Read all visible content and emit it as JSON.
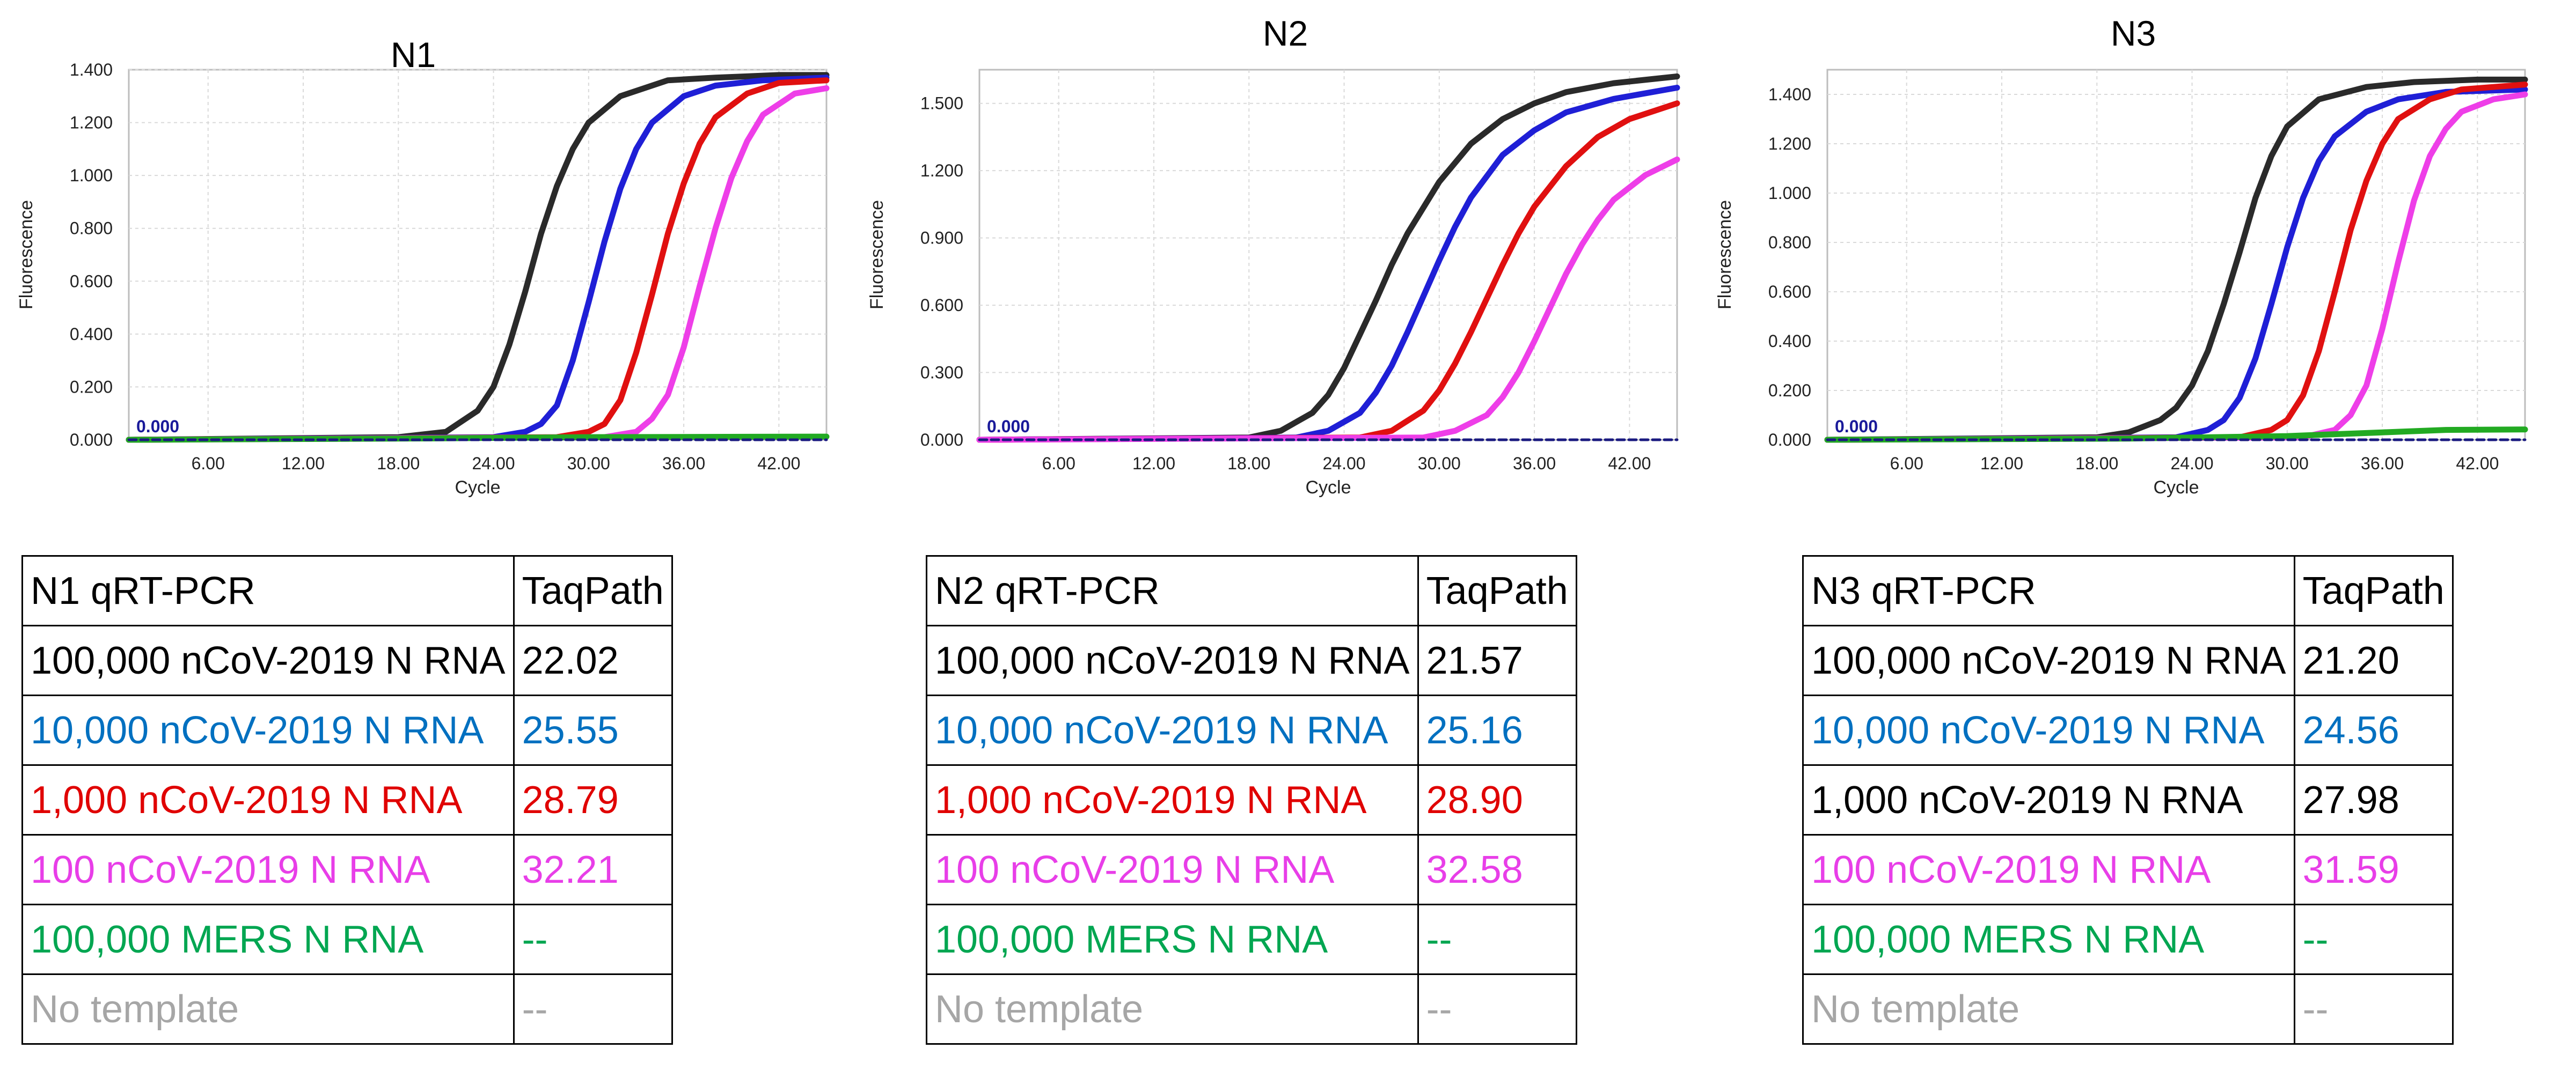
{
  "panels": [
    {
      "title": "N1",
      "xlabel": "Cycle",
      "ylabel": "Fluorescence",
      "baseline_label": "0.000",
      "table": {
        "header": [
          "N1 qRT-PCR",
          "TaqPath"
        ],
        "rows": [
          {
            "label": "100,000 nCoV-2019 N RNA",
            "value": "22.02",
            "color": "#000000"
          },
          {
            "label": "10,000 nCoV-2019 N RNA",
            "value": "25.55",
            "color": "#0070c0"
          },
          {
            "label": "1,000 nCoV-2019 N RNA",
            "value": "28.79",
            "color": "#e00000"
          },
          {
            "label": "100 nCoV-2019 N RNA",
            "value": "32.21",
            "color": "#e83ee8"
          },
          {
            "label": "100,000 MERS N RNA",
            "value": "--",
            "color": "#00a651"
          },
          {
            "label": "No template",
            "value": "--",
            "color": "#a6a6a6"
          }
        ]
      }
    },
    {
      "title": "N2",
      "xlabel": "Cycle",
      "ylabel": "Fluorescence",
      "baseline_label": "0.000",
      "table": {
        "header": [
          "N2 qRT-PCR",
          "TaqPath"
        ],
        "rows": [
          {
            "label": "100,000 nCoV-2019 N RNA",
            "value": "21.57",
            "color": "#000000"
          },
          {
            "label": "10,000 nCoV-2019 N RNA",
            "value": "25.16",
            "color": "#0070c0"
          },
          {
            "label": "1,000 nCoV-2019 N RNA",
            "value": "28.90",
            "color": "#e00000"
          },
          {
            "label": "100 nCoV-2019 N RNA",
            "value": "32.58",
            "color": "#e83ee8"
          },
          {
            "label": "100,000 MERS N RNA",
            "value": "--",
            "color": "#00a651"
          },
          {
            "label": "No template",
            "value": "--",
            "color": "#a6a6a6"
          }
        ]
      }
    },
    {
      "title": "N3",
      "xlabel": "Cycle",
      "ylabel": "Fluorescence",
      "baseline_label": "0.000",
      "table": {
        "header": [
          "N3 qRT-PCR",
          "TaqPath"
        ],
        "rows": [
          {
            "label": "100,000 nCoV-2019 N RNA",
            "value": "21.20",
            "color": "#000000"
          },
          {
            "label": "10,000 nCoV-2019 N RNA",
            "value": "24.56",
            "color": "#0070c0"
          },
          {
            "label": "1,000 nCoV-2019 N RNA",
            "value": "27.98",
            "color": "#000000"
          },
          {
            "label": "100 nCoV-2019 N RNA",
            "value": "31.59",
            "color": "#e83ee8"
          },
          {
            "label": "100,000 MERS N RNA",
            "value": "--",
            "color": "#00a651"
          },
          {
            "label": "No template",
            "value": "--",
            "color": "#a6a6a6"
          }
        ]
      }
    }
  ],
  "chart_data": [
    {
      "type": "line",
      "title": "N1",
      "xlabel": "Cycle",
      "ylabel": "Fluorescence",
      "xlim": [
        1,
        45
      ],
      "ylim": [
        0,
        1.4
      ],
      "xticks": [
        "6.00",
        "12.00",
        "18.00",
        "24.00",
        "30.00",
        "36.00",
        "42.00"
      ],
      "xtick_values": [
        6,
        12,
        18,
        24,
        30,
        36,
        42
      ],
      "yticks": [
        "0.000",
        "0.200",
        "0.400",
        "0.600",
        "0.800",
        "1.000",
        "1.200",
        "1.400"
      ],
      "ytick_values": [
        0,
        0.2,
        0.4,
        0.6,
        0.8,
        1.0,
        1.2,
        1.4
      ],
      "grid": true,
      "series": [
        {
          "color": "#2a2a2a",
          "x": [
            1,
            18,
            21,
            23,
            24,
            25,
            26,
            27,
            28,
            29,
            30,
            32,
            35,
            38,
            42,
            45
          ],
          "y": [
            0,
            0.01,
            0.03,
            0.11,
            0.2,
            0.36,
            0.56,
            0.78,
            0.96,
            1.1,
            1.2,
            1.3,
            1.36,
            1.37,
            1.38,
            1.38
          ]
        },
        {
          "color": "#1f1fd6",
          "x": [
            1,
            24,
            26,
            27,
            28,
            29,
            30,
            31,
            32,
            33,
            34,
            36,
            38,
            41,
            45
          ],
          "y": [
            0,
            0.01,
            0.03,
            0.06,
            0.13,
            0.3,
            0.52,
            0.75,
            0.95,
            1.1,
            1.2,
            1.3,
            1.34,
            1.36,
            1.37
          ]
        },
        {
          "color": "#e01010",
          "x": [
            1,
            28,
            30,
            31,
            32,
            33,
            34,
            35,
            36,
            37,
            38,
            40,
            42,
            45
          ],
          "y": [
            0,
            0.01,
            0.03,
            0.06,
            0.15,
            0.33,
            0.55,
            0.78,
            0.97,
            1.12,
            1.22,
            1.31,
            1.35,
            1.36
          ]
        },
        {
          "color": "#ee3ee8",
          "x": [
            1,
            31,
            33,
            34,
            35,
            36,
            37,
            38,
            39,
            40,
            41,
            43,
            45
          ],
          "y": [
            0,
            0.01,
            0.03,
            0.08,
            0.17,
            0.35,
            0.58,
            0.8,
            0.99,
            1.13,
            1.23,
            1.31,
            1.33
          ]
        },
        {
          "color": "#22aa22",
          "x": [
            1,
            20,
            30,
            45
          ],
          "y": [
            0,
            0.005,
            0.01,
            0.012
          ]
        },
        {
          "color": "#1a1a80",
          "x": [
            1,
            45
          ],
          "y": [
            0,
            0
          ],
          "dashed": true
        }
      ]
    },
    {
      "type": "line",
      "title": "N2",
      "xlabel": "Cycle",
      "ylabel": "Fluorescence",
      "xlim": [
        1,
        45
      ],
      "ylim": [
        0,
        1.65
      ],
      "xticks": [
        "6.00",
        "12.00",
        "18.00",
        "24.00",
        "30.00",
        "36.00",
        "42.00"
      ],
      "xtick_values": [
        6,
        12,
        18,
        24,
        30,
        36,
        42
      ],
      "yticks": [
        "0.000",
        "0.300",
        "0.600",
        "0.900",
        "1.200",
        "1.500"
      ],
      "ytick_values": [
        0,
        0.3,
        0.6,
        0.9,
        1.2,
        1.5
      ],
      "grid": true,
      "series": [
        {
          "color": "#2a2a2a",
          "x": [
            1,
            18,
            20,
            22,
            23,
            24,
            25,
            26,
            27,
            28,
            30,
            32,
            34,
            36,
            38,
            41,
            45
          ],
          "y": [
            0,
            0.01,
            0.04,
            0.12,
            0.2,
            0.32,
            0.47,
            0.62,
            0.78,
            0.92,
            1.15,
            1.32,
            1.43,
            1.5,
            1.55,
            1.59,
            1.62
          ]
        },
        {
          "color": "#1f1fd6",
          "x": [
            1,
            21,
            23,
            25,
            26,
            27,
            28,
            29,
            30,
            31,
            32,
            34,
            36,
            38,
            41,
            45
          ],
          "y": [
            0,
            0.01,
            0.04,
            0.12,
            0.21,
            0.33,
            0.48,
            0.64,
            0.8,
            0.95,
            1.08,
            1.27,
            1.38,
            1.46,
            1.52,
            1.57
          ]
        },
        {
          "color": "#e01010",
          "x": [
            1,
            25,
            27,
            29,
            30,
            31,
            32,
            33,
            34,
            35,
            36,
            38,
            40,
            42,
            45
          ],
          "y": [
            0,
            0.01,
            0.04,
            0.13,
            0.22,
            0.34,
            0.48,
            0.63,
            0.78,
            0.92,
            1.04,
            1.22,
            1.35,
            1.43,
            1.5
          ]
        },
        {
          "color": "#ee3ee8",
          "x": [
            1,
            29,
            31,
            33,
            34,
            35,
            36,
            37,
            38,
            39,
            40,
            41,
            43,
            45
          ],
          "y": [
            0,
            0.01,
            0.04,
            0.11,
            0.19,
            0.3,
            0.44,
            0.59,
            0.74,
            0.87,
            0.98,
            1.07,
            1.18,
            1.25
          ]
        },
        {
          "color": "#1a1a80",
          "x": [
            1,
            45
          ],
          "y": [
            0,
            0
          ],
          "dashed": true
        }
      ]
    },
    {
      "type": "line",
      "title": "N3",
      "xlabel": "Cycle",
      "ylabel": "Fluorescence",
      "xlim": [
        1,
        45
      ],
      "ylim": [
        0,
        1.5
      ],
      "xticks": [
        "6.00",
        "12.00",
        "18.00",
        "24.00",
        "30.00",
        "36.00",
        "42.00"
      ],
      "xtick_values": [
        6,
        12,
        18,
        24,
        30,
        36,
        42
      ],
      "yticks": [
        "0.000",
        "0.200",
        "0.400",
        "0.600",
        "0.800",
        "1.000",
        "1.200",
        "1.400"
      ],
      "ytick_values": [
        0,
        0.2,
        0.4,
        0.6,
        0.8,
        1.0,
        1.2,
        1.4
      ],
      "grid": true,
      "series": [
        {
          "color": "#2a2a2a",
          "x": [
            1,
            18,
            20,
            22,
            23,
            24,
            25,
            26,
            27,
            28,
            29,
            30,
            32,
            35,
            38,
            42,
            45
          ],
          "y": [
            0,
            0.01,
            0.03,
            0.08,
            0.13,
            0.22,
            0.36,
            0.55,
            0.76,
            0.98,
            1.15,
            1.27,
            1.38,
            1.43,
            1.45,
            1.46,
            1.46
          ]
        },
        {
          "color": "#1f1fd6",
          "x": [
            1,
            23,
            25,
            26,
            27,
            28,
            29,
            30,
            31,
            32,
            33,
            35,
            37,
            40,
            45
          ],
          "y": [
            0,
            0.01,
            0.04,
            0.08,
            0.17,
            0.33,
            0.55,
            0.78,
            0.98,
            1.13,
            1.23,
            1.33,
            1.38,
            1.41,
            1.42
          ]
        },
        {
          "color": "#e01010",
          "x": [
            1,
            27,
            29,
            30,
            31,
            32,
            33,
            34,
            35,
            36,
            37,
            39,
            41,
            45
          ],
          "y": [
            0,
            0.01,
            0.04,
            0.08,
            0.18,
            0.36,
            0.6,
            0.85,
            1.05,
            1.2,
            1.3,
            1.38,
            1.42,
            1.44
          ]
        },
        {
          "color": "#ee3ee8",
          "x": [
            1,
            31,
            33,
            34,
            35,
            36,
            37,
            38,
            39,
            40,
            41,
            43,
            45
          ],
          "y": [
            0,
            0.01,
            0.04,
            0.1,
            0.22,
            0.45,
            0.72,
            0.97,
            1.15,
            1.26,
            1.33,
            1.38,
            1.4
          ]
        },
        {
          "color": "#22aa22",
          "x": [
            1,
            20,
            30,
            36,
            40,
            45
          ],
          "y": [
            0,
            0.005,
            0.015,
            0.03,
            0.04,
            0.042
          ]
        },
        {
          "color": "#1a1a80",
          "x": [
            1,
            45
          ],
          "y": [
            0,
            0
          ],
          "dashed": true
        }
      ]
    }
  ]
}
